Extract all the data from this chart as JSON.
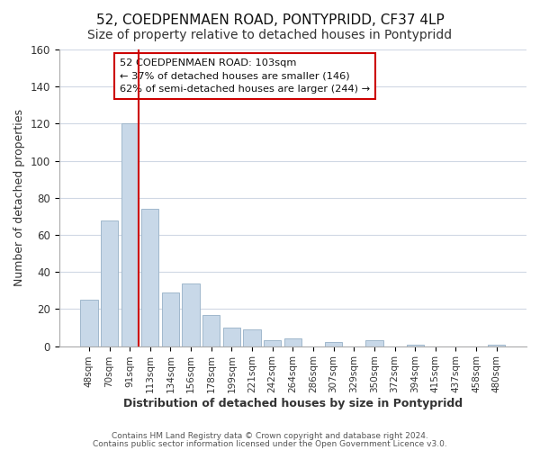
{
  "title": "52, COEDPENMAEN ROAD, PONTYPRIDD, CF37 4LP",
  "subtitle": "Size of property relative to detached houses in Pontypridd",
  "xlabel": "Distribution of detached houses by size in Pontypridd",
  "ylabel": "Number of detached properties",
  "bar_labels": [
    "48sqm",
    "70sqm",
    "91sqm",
    "113sqm",
    "134sqm",
    "156sqm",
    "178sqm",
    "199sqm",
    "221sqm",
    "242sqm",
    "264sqm",
    "286sqm",
    "307sqm",
    "329sqm",
    "350sqm",
    "372sqm",
    "394sqm",
    "415sqm",
    "437sqm",
    "458sqm",
    "480sqm"
  ],
  "bar_values": [
    25,
    68,
    120,
    74,
    29,
    34,
    17,
    10,
    9,
    3,
    4,
    0,
    2,
    0,
    3,
    0,
    1,
    0,
    0,
    0,
    1
  ],
  "bar_color": "#c8d8e8",
  "bar_edge_color": "#a0b8cc",
  "vline_color": "#cc0000",
  "ylim": [
    0,
    160
  ],
  "yticks": [
    0,
    20,
    40,
    60,
    80,
    100,
    120,
    140,
    160
  ],
  "annotation_title": "52 COEDPENMAEN ROAD: 103sqm",
  "annotation_line1": "← 37% of detached houses are smaller (146)",
  "annotation_line2": "62% of semi-detached houses are larger (244) →",
  "footer_line1": "Contains HM Land Registry data © Crown copyright and database right 2024.",
  "footer_line2": "Contains public sector information licensed under the Open Government Licence v3.0.",
  "background_color": "#ffffff",
  "grid_color": "#d0d8e4",
  "title_fontsize": 11,
  "subtitle_fontsize": 10
}
